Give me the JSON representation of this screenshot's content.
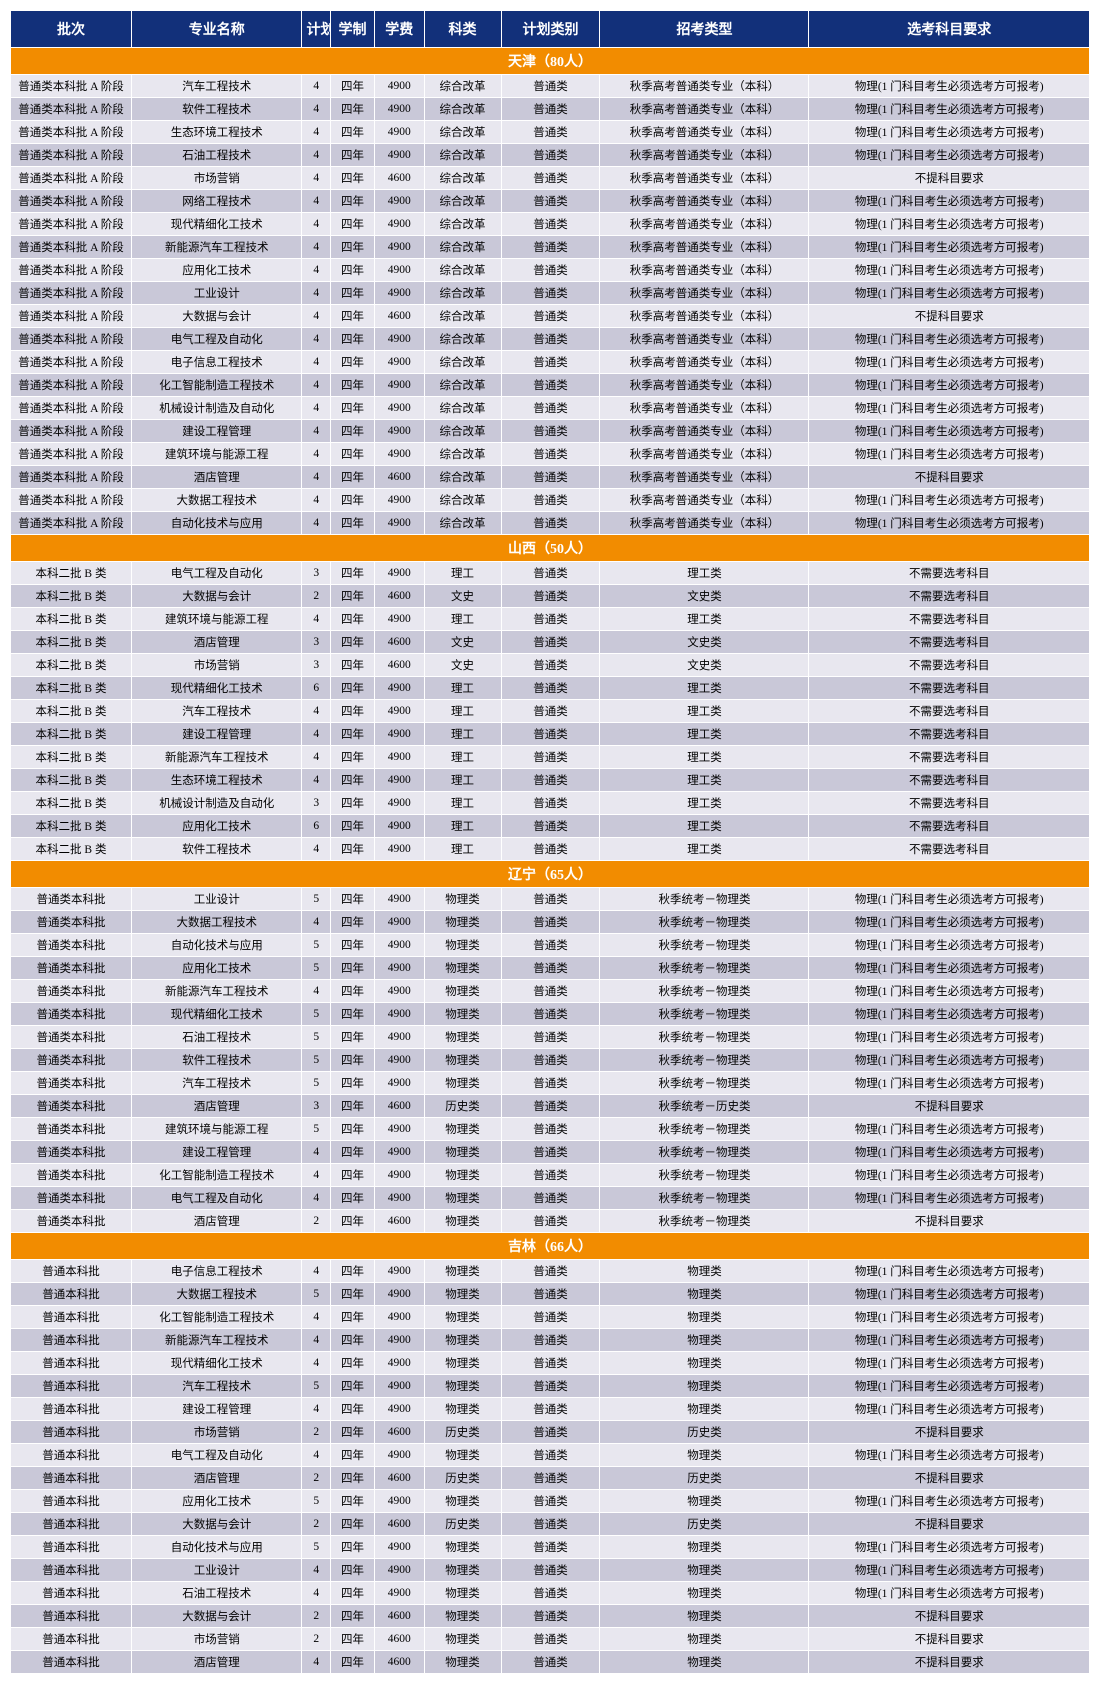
{
  "headers": [
    "批次",
    "专业名称",
    "计划数",
    "学制",
    "学费",
    "科类",
    "计划类别",
    "招考类型",
    "选考科目要求"
  ],
  "colClasses": [
    "col-batch",
    "col-major",
    "col-plan",
    "col-system",
    "col-fee",
    "col-subject",
    "col-plantype",
    "col-admtype",
    "col-req"
  ],
  "colors": {
    "header_bg": "#12307a",
    "header_fg": "#ffffff",
    "section_bg": "#f28c00",
    "section_fg": "#ffffff",
    "row_light": "#e8e7ef",
    "row_dark": "#c9c8d8",
    "border": "#ffffff"
  },
  "sections": [
    {
      "title": "天津（80人）",
      "rows": [
        [
          "普通类本科批 A 阶段",
          "汽车工程技术",
          "4",
          "四年",
          "4900",
          "综合改革",
          "普通类",
          "秋季高考普通类专业（本科）",
          "物理(1 门科目考生必须选考方可报考)"
        ],
        [
          "普通类本科批 A 阶段",
          "软件工程技术",
          "4",
          "四年",
          "4900",
          "综合改革",
          "普通类",
          "秋季高考普通类专业（本科）",
          "物理(1 门科目考生必须选考方可报考)"
        ],
        [
          "普通类本科批 A 阶段",
          "生态环境工程技术",
          "4",
          "四年",
          "4900",
          "综合改革",
          "普通类",
          "秋季高考普通类专业（本科）",
          "物理(1 门科目考生必须选考方可报考)"
        ],
        [
          "普通类本科批 A 阶段",
          "石油工程技术",
          "4",
          "四年",
          "4900",
          "综合改革",
          "普通类",
          "秋季高考普通类专业（本科）",
          "物理(1 门科目考生必须选考方可报考)"
        ],
        [
          "普通类本科批 A 阶段",
          "市场营销",
          "4",
          "四年",
          "4600",
          "综合改革",
          "普通类",
          "秋季高考普通类专业（本科）",
          "不提科目要求"
        ],
        [
          "普通类本科批 A 阶段",
          "网络工程技术",
          "4",
          "四年",
          "4900",
          "综合改革",
          "普通类",
          "秋季高考普通类专业（本科）",
          "物理(1 门科目考生必须选考方可报考)"
        ],
        [
          "普通类本科批 A 阶段",
          "现代精细化工技术",
          "4",
          "四年",
          "4900",
          "综合改革",
          "普通类",
          "秋季高考普通类专业（本科）",
          "物理(1 门科目考生必须选考方可报考)"
        ],
        [
          "普通类本科批 A 阶段",
          "新能源汽车工程技术",
          "4",
          "四年",
          "4900",
          "综合改革",
          "普通类",
          "秋季高考普通类专业（本科）",
          "物理(1 门科目考生必须选考方可报考)"
        ],
        [
          "普通类本科批 A 阶段",
          "应用化工技术",
          "4",
          "四年",
          "4900",
          "综合改革",
          "普通类",
          "秋季高考普通类专业（本科）",
          "物理(1 门科目考生必须选考方可报考)"
        ],
        [
          "普通类本科批 A 阶段",
          "工业设计",
          "4",
          "四年",
          "4900",
          "综合改革",
          "普通类",
          "秋季高考普通类专业（本科）",
          "物理(1 门科目考生必须选考方可报考)"
        ],
        [
          "普通类本科批 A 阶段",
          "大数据与会计",
          "4",
          "四年",
          "4600",
          "综合改革",
          "普通类",
          "秋季高考普通类专业（本科）",
          "不提科目要求"
        ],
        [
          "普通类本科批 A 阶段",
          "电气工程及自动化",
          "4",
          "四年",
          "4900",
          "综合改革",
          "普通类",
          "秋季高考普通类专业（本科）",
          "物理(1 门科目考生必须选考方可报考)"
        ],
        [
          "普通类本科批 A 阶段",
          "电子信息工程技术",
          "4",
          "四年",
          "4900",
          "综合改革",
          "普通类",
          "秋季高考普通类专业（本科）",
          "物理(1 门科目考生必须选考方可报考)"
        ],
        [
          "普通类本科批 A 阶段",
          "化工智能制造工程技术",
          "4",
          "四年",
          "4900",
          "综合改革",
          "普通类",
          "秋季高考普通类专业（本科）",
          "物理(1 门科目考生必须选考方可报考)"
        ],
        [
          "普通类本科批 A 阶段",
          "机械设计制造及自动化",
          "4",
          "四年",
          "4900",
          "综合改革",
          "普通类",
          "秋季高考普通类专业（本科）",
          "物理(1 门科目考生必须选考方可报考)"
        ],
        [
          "普通类本科批 A 阶段",
          "建设工程管理",
          "4",
          "四年",
          "4900",
          "综合改革",
          "普通类",
          "秋季高考普通类专业（本科）",
          "物理(1 门科目考生必须选考方可报考)"
        ],
        [
          "普通类本科批 A 阶段",
          "建筑环境与能源工程",
          "4",
          "四年",
          "4900",
          "综合改革",
          "普通类",
          "秋季高考普通类专业（本科）",
          "物理(1 门科目考生必须选考方可报考)"
        ],
        [
          "普通类本科批 A 阶段",
          "酒店管理",
          "4",
          "四年",
          "4600",
          "综合改革",
          "普通类",
          "秋季高考普通类专业（本科）",
          "不提科目要求"
        ],
        [
          "普通类本科批 A 阶段",
          "大数据工程技术",
          "4",
          "四年",
          "4900",
          "综合改革",
          "普通类",
          "秋季高考普通类专业（本科）",
          "物理(1 门科目考生必须选考方可报考)"
        ],
        [
          "普通类本科批 A 阶段",
          "自动化技术与应用",
          "4",
          "四年",
          "4900",
          "综合改革",
          "普通类",
          "秋季高考普通类专业（本科）",
          "物理(1 门科目考生必须选考方可报考)"
        ]
      ]
    },
    {
      "title": "山西（50人）",
      "rows": [
        [
          "本科二批 B 类",
          "电气工程及自动化",
          "3",
          "四年",
          "4900",
          "理工",
          "普通类",
          "理工类",
          "不需要选考科目"
        ],
        [
          "本科二批 B 类",
          "大数据与会计",
          "2",
          "四年",
          "4600",
          "文史",
          "普通类",
          "文史类",
          "不需要选考科目"
        ],
        [
          "本科二批 B 类",
          "建筑环境与能源工程",
          "4",
          "四年",
          "4900",
          "理工",
          "普通类",
          "理工类",
          "不需要选考科目"
        ],
        [
          "本科二批 B 类",
          "酒店管理",
          "3",
          "四年",
          "4600",
          "文史",
          "普通类",
          "文史类",
          "不需要选考科目"
        ],
        [
          "本科二批 B 类",
          "市场营销",
          "3",
          "四年",
          "4600",
          "文史",
          "普通类",
          "文史类",
          "不需要选考科目"
        ],
        [
          "本科二批 B 类",
          "现代精细化工技术",
          "6",
          "四年",
          "4900",
          "理工",
          "普通类",
          "理工类",
          "不需要选考科目"
        ],
        [
          "本科二批 B 类",
          "汽车工程技术",
          "4",
          "四年",
          "4900",
          "理工",
          "普通类",
          "理工类",
          "不需要选考科目"
        ],
        [
          "本科二批 B 类",
          "建设工程管理",
          "4",
          "四年",
          "4900",
          "理工",
          "普通类",
          "理工类",
          "不需要选考科目"
        ],
        [
          "本科二批 B 类",
          "新能源汽车工程技术",
          "4",
          "四年",
          "4900",
          "理工",
          "普通类",
          "理工类",
          "不需要选考科目"
        ],
        [
          "本科二批 B 类",
          "生态环境工程技术",
          "4",
          "四年",
          "4900",
          "理工",
          "普通类",
          "理工类",
          "不需要选考科目"
        ],
        [
          "本科二批 B 类",
          "机械设计制造及自动化",
          "3",
          "四年",
          "4900",
          "理工",
          "普通类",
          "理工类",
          "不需要选考科目"
        ],
        [
          "本科二批 B 类",
          "应用化工技术",
          "6",
          "四年",
          "4900",
          "理工",
          "普通类",
          "理工类",
          "不需要选考科目"
        ],
        [
          "本科二批 B 类",
          "软件工程技术",
          "4",
          "四年",
          "4900",
          "理工",
          "普通类",
          "理工类",
          "不需要选考科目"
        ]
      ]
    },
    {
      "title": "辽宁（65人）",
      "rows": [
        [
          "普通类本科批",
          "工业设计",
          "5",
          "四年",
          "4900",
          "物理类",
          "普通类",
          "秋季统考－物理类",
          "物理(1 门科目考生必须选考方可报考)"
        ],
        [
          "普通类本科批",
          "大数据工程技术",
          "4",
          "四年",
          "4900",
          "物理类",
          "普通类",
          "秋季统考－物理类",
          "物理(1 门科目考生必须选考方可报考)"
        ],
        [
          "普通类本科批",
          "自动化技术与应用",
          "5",
          "四年",
          "4900",
          "物理类",
          "普通类",
          "秋季统考－物理类",
          "物理(1 门科目考生必须选考方可报考)"
        ],
        [
          "普通类本科批",
          "应用化工技术",
          "5",
          "四年",
          "4900",
          "物理类",
          "普通类",
          "秋季统考－物理类",
          "物理(1 门科目考生必须选考方可报考)"
        ],
        [
          "普通类本科批",
          "新能源汽车工程技术",
          "4",
          "四年",
          "4900",
          "物理类",
          "普通类",
          "秋季统考－物理类",
          "物理(1 门科目考生必须选考方可报考)"
        ],
        [
          "普通类本科批",
          "现代精细化工技术",
          "5",
          "四年",
          "4900",
          "物理类",
          "普通类",
          "秋季统考－物理类",
          "物理(1 门科目考生必须选考方可报考)"
        ],
        [
          "普通类本科批",
          "石油工程技术",
          "5",
          "四年",
          "4900",
          "物理类",
          "普通类",
          "秋季统考－物理类",
          "物理(1 门科目考生必须选考方可报考)"
        ],
        [
          "普通类本科批",
          "软件工程技术",
          "5",
          "四年",
          "4900",
          "物理类",
          "普通类",
          "秋季统考－物理类",
          "物理(1 门科目考生必须选考方可报考)"
        ],
        [
          "普通类本科批",
          "汽车工程技术",
          "5",
          "四年",
          "4900",
          "物理类",
          "普通类",
          "秋季统考－物理类",
          "物理(1 门科目考生必须选考方可报考)"
        ],
        [
          "普通类本科批",
          "酒店管理",
          "3",
          "四年",
          "4600",
          "历史类",
          "普通类",
          "秋季统考－历史类",
          "不提科目要求"
        ],
        [
          "普通类本科批",
          "建筑环境与能源工程",
          "5",
          "四年",
          "4900",
          "物理类",
          "普通类",
          "秋季统考－物理类",
          "物理(1 门科目考生必须选考方可报考)"
        ],
        [
          "普通类本科批",
          "建设工程管理",
          "4",
          "四年",
          "4900",
          "物理类",
          "普通类",
          "秋季统考－物理类",
          "物理(1 门科目考生必须选考方可报考)"
        ],
        [
          "普通类本科批",
          "化工智能制造工程技术",
          "4",
          "四年",
          "4900",
          "物理类",
          "普通类",
          "秋季统考－物理类",
          "物理(1 门科目考生必须选考方可报考)"
        ],
        [
          "普通类本科批",
          "电气工程及自动化",
          "4",
          "四年",
          "4900",
          "物理类",
          "普通类",
          "秋季统考－物理类",
          "物理(1 门科目考生必须选考方可报考)"
        ],
        [
          "普通类本科批",
          "酒店管理",
          "2",
          "四年",
          "4600",
          "物理类",
          "普通类",
          "秋季统考－物理类",
          "不提科目要求"
        ]
      ]
    },
    {
      "title": "吉林（66人）",
      "rows": [
        [
          "普通本科批",
          "电子信息工程技术",
          "4",
          "四年",
          "4900",
          "物理类",
          "普通类",
          "物理类",
          "物理(1 门科目考生必须选考方可报考)"
        ],
        [
          "普通本科批",
          "大数据工程技术",
          "5",
          "四年",
          "4900",
          "物理类",
          "普通类",
          "物理类",
          "物理(1 门科目考生必须选考方可报考)"
        ],
        [
          "普通本科批",
          "化工智能制造工程技术",
          "4",
          "四年",
          "4900",
          "物理类",
          "普通类",
          "物理类",
          "物理(1 门科目考生必须选考方可报考)"
        ],
        [
          "普通本科批",
          "新能源汽车工程技术",
          "4",
          "四年",
          "4900",
          "物理类",
          "普通类",
          "物理类",
          "物理(1 门科目考生必须选考方可报考)"
        ],
        [
          "普通本科批",
          "现代精细化工技术",
          "4",
          "四年",
          "4900",
          "物理类",
          "普通类",
          "物理类",
          "物理(1 门科目考生必须选考方可报考)"
        ],
        [
          "普通本科批",
          "汽车工程技术",
          "5",
          "四年",
          "4900",
          "物理类",
          "普通类",
          "物理类",
          "物理(1 门科目考生必须选考方可报考)"
        ],
        [
          "普通本科批",
          "建设工程管理",
          "4",
          "四年",
          "4900",
          "物理类",
          "普通类",
          "物理类",
          "物理(1 门科目考生必须选考方可报考)"
        ],
        [
          "普通本科批",
          "市场营销",
          "2",
          "四年",
          "4600",
          "历史类",
          "普通类",
          "历史类",
          "不提科目要求"
        ],
        [
          "普通本科批",
          "电气工程及自动化",
          "4",
          "四年",
          "4900",
          "物理类",
          "普通类",
          "物理类",
          "物理(1 门科目考生必须选考方可报考)"
        ],
        [
          "普通本科批",
          "酒店管理",
          "2",
          "四年",
          "4600",
          "历史类",
          "普通类",
          "历史类",
          "不提科目要求"
        ],
        [
          "普通本科批",
          "应用化工技术",
          "5",
          "四年",
          "4900",
          "物理类",
          "普通类",
          "物理类",
          "物理(1 门科目考生必须选考方可报考)"
        ],
        [
          "普通本科批",
          "大数据与会计",
          "2",
          "四年",
          "4600",
          "历史类",
          "普通类",
          "历史类",
          "不提科目要求"
        ],
        [
          "普通本科批",
          "自动化技术与应用",
          "5",
          "四年",
          "4900",
          "物理类",
          "普通类",
          "物理类",
          "物理(1 门科目考生必须选考方可报考)"
        ],
        [
          "普通本科批",
          "工业设计",
          "4",
          "四年",
          "4900",
          "物理类",
          "普通类",
          "物理类",
          "物理(1 门科目考生必须选考方可报考)"
        ],
        [
          "普通本科批",
          "石油工程技术",
          "4",
          "四年",
          "4900",
          "物理类",
          "普通类",
          "物理类",
          "物理(1 门科目考生必须选考方可报考)"
        ],
        [
          "普通本科批",
          "大数据与会计",
          "2",
          "四年",
          "4600",
          "物理类",
          "普通类",
          "物理类",
          "不提科目要求"
        ],
        [
          "普通本科批",
          "市场营销",
          "2",
          "四年",
          "4600",
          "物理类",
          "普通类",
          "物理类",
          "不提科目要求"
        ],
        [
          "普通本科批",
          "酒店管理",
          "4",
          "四年",
          "4600",
          "物理类",
          "普通类",
          "物理类",
          "不提科目要求"
        ]
      ]
    }
  ]
}
